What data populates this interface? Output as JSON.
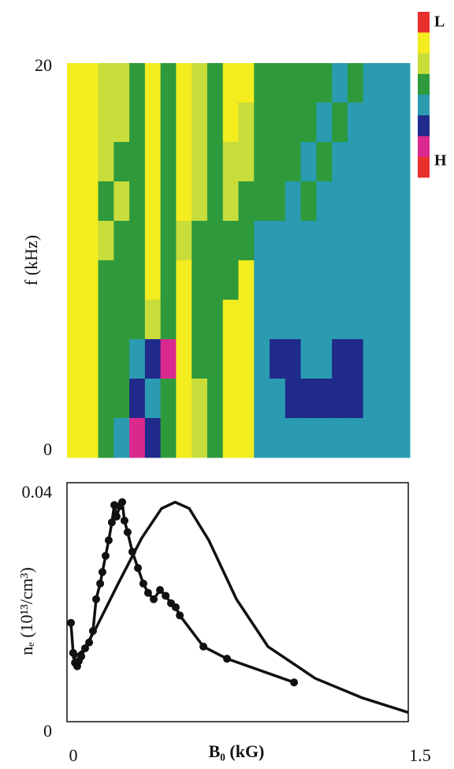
{
  "chart_data": [
    {
      "type": "heatmap",
      "ylabel": "f (kHz)",
      "ylim": [
        0,
        20
      ],
      "yticks": [
        0,
        20
      ],
      "colorscale": [
        "#e8302c",
        "#f3ec1f",
        "#c8dc3a",
        "#2e9a3c",
        "#2a9bb0",
        "#1f2a8a",
        "#d9298f",
        "#e8302c"
      ],
      "colorbar_labels": [
        "L",
        "H"
      ],
      "z": [
        [
          1,
          1,
          2,
          2,
          3,
          1,
          3,
          1,
          2,
          3,
          1,
          1,
          3,
          3,
          3,
          3,
          3,
          4,
          3,
          4,
          4,
          4
        ],
        [
          1,
          1,
          2,
          2,
          3,
          1,
          3,
          1,
          2,
          3,
          1,
          2,
          3,
          3,
          3,
          3,
          4,
          3,
          4,
          4,
          4,
          4
        ],
        [
          1,
          1,
          2,
          3,
          3,
          1,
          3,
          1,
          2,
          3,
          2,
          2,
          3,
          3,
          3,
          4,
          3,
          4,
          4,
          4,
          4,
          4
        ],
        [
          1,
          1,
          3,
          2,
          3,
          1,
          3,
          1,
          2,
          3,
          2,
          3,
          3,
          3,
          4,
          3,
          4,
          4,
          4,
          4,
          4,
          4
        ],
        [
          1,
          1,
          2,
          3,
          3,
          1,
          3,
          2,
          3,
          3,
          3,
          3,
          4,
          4,
          4,
          4,
          4,
          4,
          4,
          4,
          4,
          4
        ],
        [
          1,
          1,
          3,
          3,
          3,
          1,
          3,
          1,
          3,
          3,
          3,
          1,
          4,
          4,
          4,
          4,
          4,
          4,
          4,
          4,
          4,
          4
        ],
        [
          1,
          1,
          3,
          3,
          3,
          2,
          3,
          1,
          3,
          3,
          1,
          1,
          4,
          4,
          4,
          4,
          4,
          4,
          4,
          4,
          4,
          4
        ],
        [
          1,
          1,
          3,
          3,
          4,
          5,
          6,
          1,
          3,
          3,
          1,
          1,
          4,
          5,
          5,
          4,
          4,
          5,
          5,
          4,
          4,
          4
        ],
        [
          1,
          1,
          3,
          3,
          5,
          4,
          3,
          1,
          2,
          3,
          1,
          1,
          4,
          4,
          5,
          5,
          5,
          5,
          5,
          4,
          4,
          4
        ],
        [
          1,
          1,
          3,
          4,
          6,
          5,
          3,
          1,
          2,
          3,
          1,
          1,
          4,
          4,
          4,
          4,
          4,
          4,
          4,
          4,
          4,
          4
        ]
      ]
    },
    {
      "type": "line",
      "xlabel": "B₀ (kG)",
      "ylabel": "nₑ (10¹³/cm³)",
      "xlim": [
        0,
        1.5
      ],
      "xticks": [
        0,
        1.5
      ],
      "ylim": [
        0,
        0.04
      ],
      "yticks": [
        0,
        0.04
      ],
      "series": [
        {
          "color": "#111111",
          "markers": true,
          "x": [
            0,
            0.01,
            0.018,
            0.028,
            0.035,
            0.046,
            0.063,
            0.081,
            0.098,
            0.112,
            0.13,
            0.14,
            0.154,
            0.168,
            0.182,
            0.193,
            0.203,
            0.217,
            0.228,
            0.238,
            0.252,
            0.273,
            0.298,
            0.322,
            0.343,
            0.368,
            0.396,
            0.421,
            0.445,
            0.466,
            0.484,
            0.589,
            0.694,
            0.992
          ],
          "values": [
            0.0171,
            0.0119,
            0.0102,
            0.0096,
            0.0105,
            0.0113,
            0.0127,
            0.0137,
            0.0157,
            0.0212,
            0.0239,
            0.0259,
            0.0287,
            0.0314,
            0.0345,
            0.0375,
            0.0355,
            0.0373,
            0.038,
            0.0348,
            0.0328,
            0.0294,
            0.0266,
            0.0239,
            0.0223,
            0.0212,
            0.0228,
            0.0218,
            0.0205,
            0.0198,
            0.0184,
            0.013,
            0.0109,
            0.0068
          ]
        },
        {
          "color": "#111111",
          "markers": false,
          "x": [
            0.007,
            0.053,
            0.105,
            0.21,
            0.315,
            0.403,
            0.463,
            0.526,
            0.613,
            0.736,
            0.876,
            1.086,
            1.297,
            1.5
          ],
          "values": [
            0.0109,
            0.0123,
            0.0157,
            0.0239,
            0.0318,
            0.0369,
            0.038,
            0.0369,
            0.0314,
            0.0212,
            0.013,
            0.0075,
            0.0041,
            0.0016
          ]
        }
      ]
    }
  ]
}
